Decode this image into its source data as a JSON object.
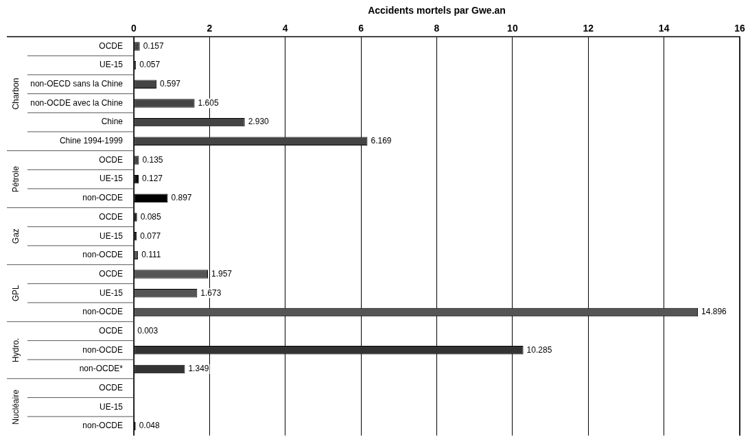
{
  "chart_data": {
    "type": "bar",
    "orientation": "horizontal",
    "stacked": true,
    "xlabel": "Accidents mortels par Gwe.an",
    "categories": [
      "OCDE",
      "UE-15",
      "non-OECD sans la Chine",
      "non-OCDE avec la Chine",
      "Chine",
      "Chine 1994-1999",
      "OCDE",
      "UE-15",
      "non-OCDE",
      "OCDE",
      "UE-15",
      "non-OCDE",
      "OCDE",
      "UE-15",
      "non-OCDE",
      "OCDE",
      "non-OCDE",
      "non-OCDE*",
      "OCDE",
      "UE-15",
      "non-OCDE"
    ],
    "series": [
      {
        "name": "Charbon",
        "colors": [
          "#444444",
          "#444444",
          "#444444",
          "#444444",
          "#444444",
          "#444444",
          null,
          null,
          null,
          null,
          null,
          null,
          null,
          null,
          null,
          null,
          null,
          null,
          null,
          null,
          null
        ],
        "values": [
          0.157,
          0.057,
          0.597,
          1.605,
          2.93,
          6.169,
          null,
          null,
          null,
          null,
          null,
          null,
          null,
          null,
          null,
          null,
          null,
          null,
          null,
          null,
          null
        ],
        "value_labels": [
          "0.157",
          "0.057",
          "0.597",
          "1.605",
          "2.930",
          "6.169",
          null,
          null,
          null,
          null,
          null,
          null,
          null,
          null,
          null,
          null,
          null,
          null,
          null,
          null,
          null
        ]
      },
      {
        "name": "Pétrole",
        "colors": [
          null,
          null,
          null,
          null,
          null,
          null,
          "#444444",
          "#111111",
          "#000000",
          null,
          null,
          null,
          null,
          null,
          null,
          null,
          null,
          null,
          null,
          null,
          null
        ],
        "values": [
          null,
          null,
          null,
          null,
          null,
          null,
          0.135,
          0.127,
          0.897,
          null,
          null,
          null,
          null,
          null,
          null,
          null,
          null,
          null,
          null,
          null,
          null
        ],
        "value_labels": [
          null,
          null,
          null,
          null,
          null,
          null,
          "0.135",
          "0.127",
          "0.897",
          null,
          null,
          null,
          null,
          null,
          null,
          null,
          null,
          null,
          null,
          null,
          null
        ]
      },
      {
        "name": "Gaz",
        "colors": [
          null,
          null,
          null,
          null,
          null,
          null,
          null,
          null,
          null,
          "#111111",
          "#111111",
          "#555555",
          null,
          null,
          null,
          null,
          null,
          null,
          null,
          null,
          null
        ],
        "values": [
          null,
          null,
          null,
          null,
          null,
          null,
          null,
          null,
          null,
          0.085,
          0.077,
          0.111,
          null,
          null,
          null,
          null,
          null,
          null,
          null,
          null,
          null
        ],
        "value_labels": [
          null,
          null,
          null,
          null,
          null,
          null,
          null,
          null,
          null,
          "0.085",
          "0.077",
          "0.111",
          null,
          null,
          null,
          null,
          null,
          null,
          null,
          null,
          null
        ]
      },
      {
        "name": "GPL",
        "colors": [
          null,
          null,
          null,
          null,
          null,
          null,
          null,
          null,
          null,
          null,
          null,
          null,
          "#555555",
          "#555555",
          "#555555",
          null,
          null,
          null,
          null,
          null,
          null
        ],
        "values": [
          null,
          null,
          null,
          null,
          null,
          null,
          null,
          null,
          null,
          null,
          null,
          null,
          1.957,
          1.673,
          14.896,
          null,
          null,
          null,
          null,
          null,
          null
        ],
        "value_labels": [
          null,
          null,
          null,
          null,
          null,
          null,
          null,
          null,
          null,
          null,
          null,
          null,
          "1.957",
          "1.673",
          "14.896",
          null,
          null,
          null,
          null,
          null,
          null
        ]
      },
      {
        "name": "Hydro.",
        "colors": [
          null,
          null,
          null,
          null,
          null,
          null,
          null,
          null,
          null,
          null,
          null,
          null,
          null,
          null,
          null,
          "#000000",
          "#333333",
          "#333333",
          null,
          null,
          null
        ],
        "values": [
          null,
          null,
          null,
          null,
          null,
          null,
          null,
          null,
          null,
          null,
          null,
          null,
          null,
          null,
          null,
          0.003,
          10.285,
          1.349,
          null,
          null,
          null
        ],
        "value_labels": [
          null,
          null,
          null,
          null,
          null,
          null,
          null,
          null,
          null,
          null,
          null,
          null,
          null,
          null,
          null,
          "0.003",
          "10.285",
          "1.349",
          null,
          null,
          null
        ]
      },
      {
        "name": "Nucléaire",
        "colors": [
          null,
          null,
          null,
          null,
          null,
          null,
          null,
          null,
          null,
          null,
          null,
          null,
          null,
          null,
          null,
          null,
          null,
          null,
          "#555555",
          "#555555",
          "#555555"
        ],
        "values": [
          null,
          null,
          null,
          null,
          null,
          null,
          null,
          null,
          null,
          null,
          null,
          null,
          null,
          null,
          null,
          null,
          null,
          null,
          null,
          null,
          0.048
        ],
        "value_labels": [
          null,
          null,
          null,
          null,
          null,
          null,
          null,
          null,
          null,
          null,
          null,
          null,
          null,
          null,
          null,
          null,
          null,
          null,
          null,
          null,
          "0.048"
        ]
      }
    ],
    "xlim": [
      0,
      16
    ],
    "xticks": [
      0,
      2,
      4,
      6,
      8,
      10,
      12,
      14,
      16
    ],
    "grid": "x",
    "legend": false
  }
}
